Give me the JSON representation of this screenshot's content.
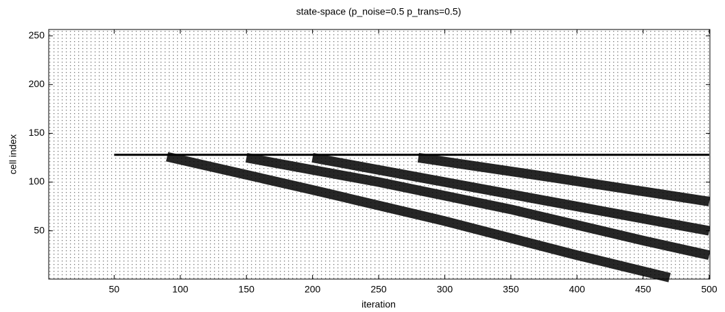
{
  "chart_data": {
    "type": "image",
    "title": "state-space (p_noise=0.5 p_trans=0.5)",
    "xlabel": "iteration",
    "ylabel": "cell index",
    "xlim": [
      0.5,
      500.5
    ],
    "ylim": [
      0.5,
      256.5
    ],
    "xticks": [
      50,
      100,
      150,
      200,
      250,
      300,
      350,
      400,
      450,
      500
    ],
    "yticks": [
      50,
      100,
      150,
      200,
      250
    ],
    "grid": false,
    "series": [
      {
        "color": "#000000",
        "x": [
          50,
          500
        ],
        "values": [
          128,
          128
        ]
      },
      {
        "color": "#000000",
        "x": [
          90,
          200,
          300,
          400,
          470
        ],
        "values": [
          126,
          92,
          60,
          25,
          2
        ]
      },
      {
        "color": "#000000",
        "x": [
          150,
          250,
          350,
          450,
          500
        ],
        "values": [
          125,
          100,
          72,
          40,
          25
        ]
      },
      {
        "color": "#000000",
        "x": [
          200,
          300,
          400,
          500
        ],
        "values": [
          125,
          100,
          75,
          50
        ]
      },
      {
        "color": "#000000",
        "x": [
          280,
          380,
          500
        ],
        "values": [
          125,
          105,
          80
        ]
      }
    ]
  }
}
